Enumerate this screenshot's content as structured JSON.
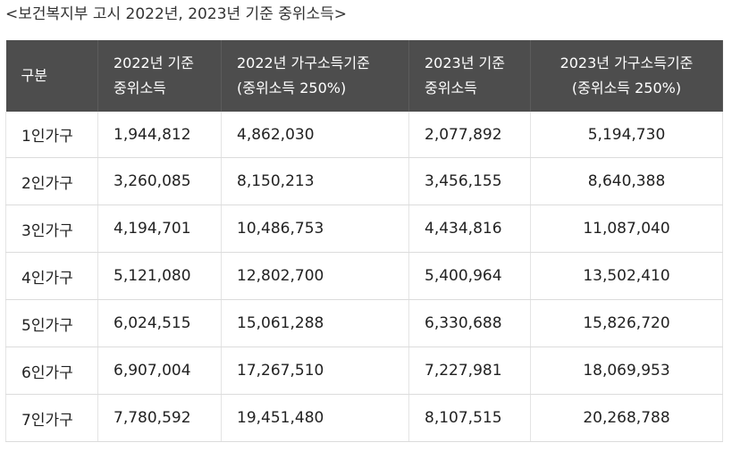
{
  "caption": "<보건복지부 고시 2022년, 2023년 기준 중위소득>",
  "headers": [
    {
      "line1": "구분",
      "line2": ""
    },
    {
      "line1": "2022년 기준",
      "line2": "중위소득"
    },
    {
      "line1": "2022년 가구소득기준",
      "line2": "(중위소득 250%)"
    },
    {
      "line1": "2023년 기준",
      "line2": "중위소득"
    },
    {
      "line1": "2023년 가구소득기준",
      "line2": "(중위소득 250%)"
    }
  ],
  "rows": [
    [
      "1인가구",
      "1,944,812",
      "4,862,030",
      "2,077,892",
      "5,194,730"
    ],
    [
      "2인가구",
      "3,260,085",
      "8,150,213",
      "3,456,155",
      "8,640,388"
    ],
    [
      "3인가구",
      "4,194,701",
      "10,486,753",
      "4,434,816",
      "11,087,040"
    ],
    [
      "4인가구",
      "5,121,080",
      "12,802,700",
      "5,400,964",
      "13,502,410"
    ],
    [
      "5인가구",
      "6,024,515",
      "15,061,288",
      "6,330,688",
      "15,826,720"
    ],
    [
      "6인가구",
      "6,907,004",
      "17,267,510",
      "7,227,981",
      "18,069,953"
    ],
    [
      "7인가구",
      "7,780,592",
      "19,451,480",
      "8,107,515",
      "20,268,788"
    ]
  ]
}
